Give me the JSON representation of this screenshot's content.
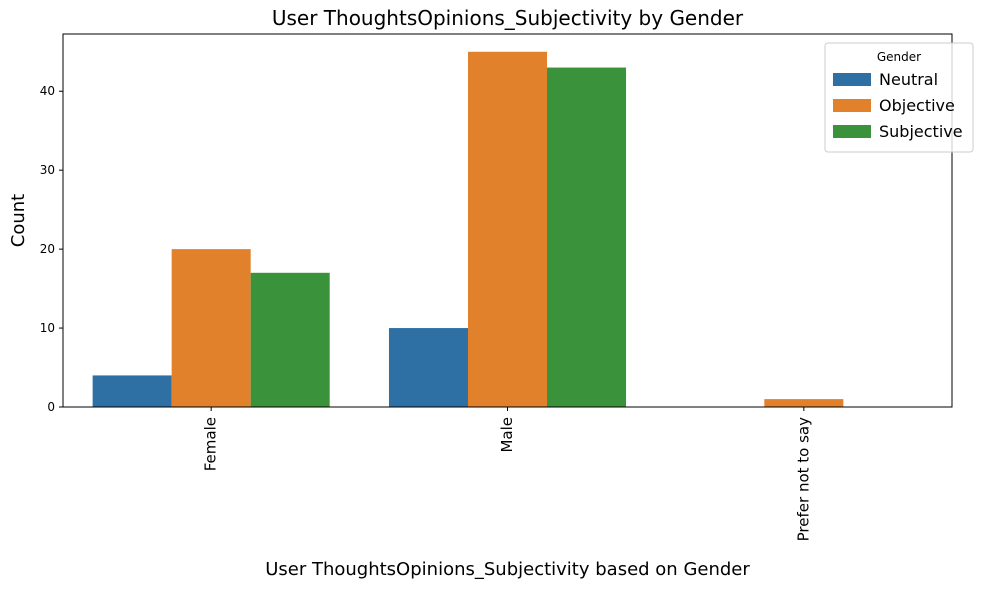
{
  "chart_data": {
    "type": "bar",
    "title": "User ThoughtsOpinions_Subjectivity by Gender",
    "xlabel": "User ThoughtsOpinions_Subjectivity based on Gender",
    "ylabel": "Count",
    "categories": [
      "Female",
      "Male",
      "Prefer not to say"
    ],
    "series": [
      {
        "name": "Neutral",
        "values": [
          4,
          10,
          0
        ],
        "color": "#2e6fa4"
      },
      {
        "name": "Objective",
        "values": [
          20,
          45,
          1
        ],
        "color": "#e1812c"
      },
      {
        "name": "Subjective",
        "values": [
          17,
          43,
          0
        ],
        "color": "#3a923a"
      }
    ],
    "ylim": [
      0,
      47.25
    ],
    "yticks": [
      0,
      10,
      20,
      30,
      40
    ],
    "legend": {
      "title": "Gender",
      "placement": "top-right"
    },
    "grid": false
  }
}
